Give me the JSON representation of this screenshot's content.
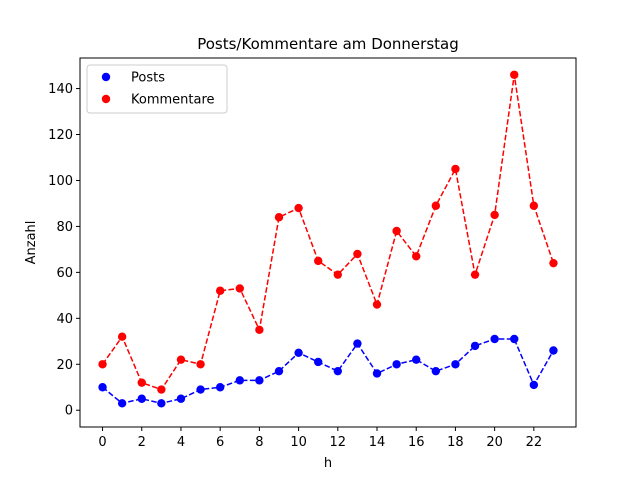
{
  "chart_data": {
    "type": "line",
    "title": "Posts/Kommentare am Donnerstag",
    "xlabel": "h",
    "ylabel": "Anzahl",
    "x": [
      0,
      1,
      2,
      3,
      4,
      5,
      6,
      7,
      8,
      9,
      10,
      11,
      12,
      13,
      14,
      15,
      16,
      17,
      18,
      19,
      20,
      21,
      22,
      23
    ],
    "xlim": [
      -1.15,
      24.15
    ],
    "ylim": [
      -7.3,
      153.3
    ],
    "xticks": [
      0,
      2,
      4,
      6,
      8,
      10,
      12,
      14,
      16,
      18,
      20,
      22
    ],
    "yticks": [
      0,
      20,
      40,
      60,
      80,
      100,
      120,
      140
    ],
    "grid": false,
    "legend_position": "top-left",
    "series": [
      {
        "name": "Posts",
        "color": "#0000ff",
        "marker": "circle",
        "linestyle": "dashed",
        "values": [
          10,
          3,
          5,
          3,
          5,
          9,
          10,
          13,
          13,
          17,
          25,
          21,
          17,
          29,
          16,
          20,
          22,
          17,
          20,
          28,
          31,
          31,
          11,
          26
        ]
      },
      {
        "name": "Kommentare",
        "color": "#ff0000",
        "marker": "circle",
        "linestyle": "dashed",
        "values": [
          20,
          32,
          12,
          9,
          22,
          20,
          52,
          53,
          35,
          84,
          88,
          65,
          59,
          68,
          46,
          78,
          67,
          89,
          105,
          59,
          85,
          146,
          89,
          64
        ]
      }
    ]
  }
}
